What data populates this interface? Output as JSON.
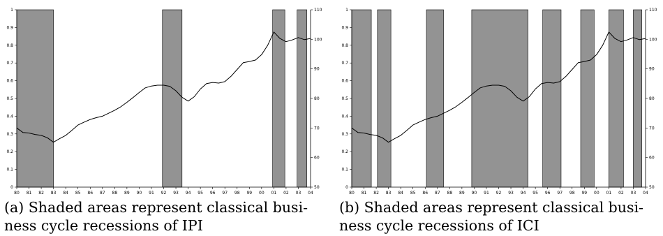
{
  "panels": [
    {
      "caption_line1": "(a) Shaded areas represent classical busi-",
      "caption_line2": "ness cycle recessions of IPI"
    },
    {
      "caption_line1": "(b) Shaded areas represent classical busi-",
      "caption_line2": "ness cycle recessions of ICI"
    }
  ],
  "chart_data": [
    {
      "type": "line",
      "title": "",
      "xlabel": "",
      "ylabel": "",
      "x_ticks": [
        "80",
        "81",
        "82",
        "83",
        "84",
        "85",
        "86",
        "87",
        "88",
        "89",
        "90",
        "91",
        "92",
        "93",
        "94",
        "95",
        "96",
        "97",
        "98",
        "99",
        "00",
        "01",
        "02",
        "03",
        "04"
      ],
      "xlim": [
        1980,
        2004
      ],
      "ylim_left": [
        0,
        1
      ],
      "y_ticks_left": [
        "0",
        "0.1",
        "0.2",
        "0.3",
        "0.4",
        "0.5",
        "0.6",
        "0.7",
        "0.8",
        "0.9",
        "1"
      ],
      "ylim_right": [
        50,
        110
      ],
      "y_ticks_right": [
        "50",
        "60",
        "70",
        "80",
        "90",
        "100",
        "110"
      ],
      "grid": false,
      "shaded_color": "#939393",
      "line_color": "#000000",
      "recession_shading": [
        {
          "from": 1980.0,
          "to": 1983.0
        },
        {
          "from": 1991.9,
          "to": 1993.5
        },
        {
          "from": 2000.9,
          "to": 2001.9
        },
        {
          "from": 2002.9,
          "to": 2003.7
        }
      ],
      "series": [
        {
          "axis": "right",
          "x": [
            1980.0,
            1980.5,
            1981.0,
            1981.5,
            1982.0,
            1982.5,
            1983.0,
            1983.5,
            1984.0,
            1984.5,
            1985.0,
            1985.5,
            1986.0,
            1986.5,
            1987.0,
            1987.5,
            1988.0,
            1988.5,
            1989.0,
            1989.5,
            1990.0,
            1990.5,
            1991.0,
            1991.5,
            1992.0,
            1992.5,
            1993.0,
            1993.5,
            1994.0,
            1994.5,
            1995.0,
            1995.5,
            1996.0,
            1996.5,
            1997.0,
            1997.5,
            1998.0,
            1998.5,
            1999.0,
            1999.5,
            2000.0,
            2000.5,
            2001.0,
            2001.5,
            2002.0,
            2002.5,
            2003.0,
            2003.5,
            2004.0
          ],
          "values": [
            70.0,
            68.5,
            68.3,
            67.8,
            67.5,
            66.7,
            65.2,
            66.4,
            67.5,
            69.2,
            71.0,
            72.0,
            72.9,
            73.5,
            74.0,
            75.0,
            76.0,
            77.2,
            78.7,
            80.3,
            82.0,
            83.6,
            84.2,
            84.5,
            84.5,
            84.1,
            82.6,
            80.4,
            79.1,
            80.6,
            83.2,
            85.0,
            85.4,
            85.2,
            85.7,
            87.5,
            89.8,
            92.1,
            92.5,
            93.0,
            94.8,
            98.0,
            102.5,
            100.3,
            99.2,
            99.8,
            100.6,
            99.9,
            100.3
          ]
        }
      ]
    },
    {
      "type": "line",
      "title": "",
      "xlabel": "",
      "ylabel": "",
      "x_ticks": [
        "80",
        "81",
        "82",
        "83",
        "84",
        "85",
        "86",
        "87",
        "88",
        "89",
        "90",
        "91",
        "92",
        "93",
        "94",
        "95",
        "96",
        "97",
        "98",
        "99",
        "00",
        "01",
        "02",
        "03",
        "04"
      ],
      "xlim": [
        1980,
        2004
      ],
      "ylim_left": [
        0,
        1
      ],
      "y_ticks_left": [
        "0",
        "0.1",
        "0.2",
        "0.3",
        "0.4",
        "0.5",
        "0.6",
        "0.7",
        "0.8",
        "0.9",
        "1"
      ],
      "ylim_right": [
        50,
        110
      ],
      "y_ticks_right": [
        "50",
        "60",
        "70",
        "80",
        "90",
        "100",
        "110"
      ],
      "grid": false,
      "shaded_color": "#939393",
      "line_color": "#000000",
      "recession_shading": [
        {
          "from": 1980.0,
          "to": 1981.6
        },
        {
          "from": 1982.1,
          "to": 1983.2
        },
        {
          "from": 1986.1,
          "to": 1987.5
        },
        {
          "from": 1989.8,
          "to": 1994.4
        },
        {
          "from": 1995.6,
          "to": 1997.1
        },
        {
          "from": 1998.7,
          "to": 1999.8
        },
        {
          "from": 2001.0,
          "to": 2002.2
        },
        {
          "from": 2003.0,
          "to": 2003.7
        }
      ],
      "series": [
        {
          "axis": "right",
          "x": [
            1980.0,
            1980.5,
            1981.0,
            1981.5,
            1982.0,
            1982.5,
            1983.0,
            1983.5,
            1984.0,
            1984.5,
            1985.0,
            1985.5,
            1986.0,
            1986.5,
            1987.0,
            1987.5,
            1988.0,
            1988.5,
            1989.0,
            1989.5,
            1990.0,
            1990.5,
            1991.0,
            1991.5,
            1992.0,
            1992.5,
            1993.0,
            1993.5,
            1994.0,
            1994.5,
            1995.0,
            1995.5,
            1996.0,
            1996.5,
            1997.0,
            1997.5,
            1998.0,
            1998.5,
            1999.0,
            1999.5,
            2000.0,
            2000.5,
            2001.0,
            2001.5,
            2002.0,
            2002.5,
            2003.0,
            2003.5,
            2004.0
          ],
          "values": [
            70.0,
            68.5,
            68.3,
            67.8,
            67.5,
            66.7,
            65.2,
            66.4,
            67.5,
            69.2,
            71.0,
            72.0,
            72.9,
            73.5,
            74.0,
            75.0,
            76.0,
            77.2,
            78.7,
            80.3,
            82.0,
            83.6,
            84.2,
            84.5,
            84.5,
            84.1,
            82.6,
            80.4,
            79.1,
            80.6,
            83.2,
            85.0,
            85.4,
            85.2,
            85.7,
            87.5,
            89.8,
            92.1,
            92.5,
            93.0,
            94.8,
            98.0,
            102.5,
            100.3,
            99.2,
            99.8,
            100.6,
            99.9,
            100.3
          ]
        }
      ]
    }
  ]
}
